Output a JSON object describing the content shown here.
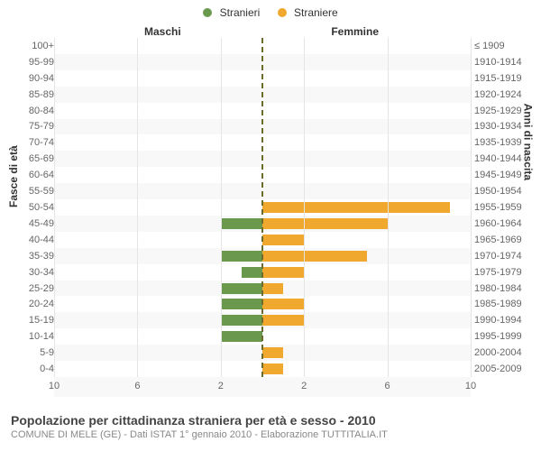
{
  "legend": {
    "items": [
      {
        "label": "Stranieri",
        "color": "#6a994e"
      },
      {
        "label": "Straniere",
        "color": "#f0a82e"
      }
    ]
  },
  "headers": {
    "left": "Maschi",
    "right": "Femmine"
  },
  "yaxis": {
    "left_title": "Fasce di età",
    "right_title": "Anni di nascita"
  },
  "footer": {
    "title": "Popolazione per cittadinanza straniera per età e sesso - 2010",
    "subtitle": "COMUNE DI MELE (GE) - Dati ISTAT 1° gennaio 2010 - Elaborazione TUTTITALIA.IT"
  },
  "chart": {
    "type": "population-pyramid",
    "background_color": "#f8f8f8",
    "alt_row_color": "#ffffff",
    "grid_color": "#e5e5e5",
    "centerline_color": "#6b6b2b",
    "male_color": "#6a994e",
    "female_color": "#f0a82e",
    "label_fontsize": 11,
    "x_max": 10,
    "x_ticks_left": [
      10,
      6,
      2
    ],
    "x_ticks_right": [
      2,
      6,
      10
    ],
    "rows": [
      {
        "age": "100+",
        "birth": "≤ 1909",
        "male": 0,
        "female": 0
      },
      {
        "age": "95-99",
        "birth": "1910-1914",
        "male": 0,
        "female": 0
      },
      {
        "age": "90-94",
        "birth": "1915-1919",
        "male": 0,
        "female": 0
      },
      {
        "age": "85-89",
        "birth": "1920-1924",
        "male": 0,
        "female": 0
      },
      {
        "age": "80-84",
        "birth": "1925-1929",
        "male": 0,
        "female": 0
      },
      {
        "age": "75-79",
        "birth": "1930-1934",
        "male": 0,
        "female": 0
      },
      {
        "age": "70-74",
        "birth": "1935-1939",
        "male": 0,
        "female": 0
      },
      {
        "age": "65-69",
        "birth": "1940-1944",
        "male": 0,
        "female": 0
      },
      {
        "age": "60-64",
        "birth": "1945-1949",
        "male": 0,
        "female": 0
      },
      {
        "age": "55-59",
        "birth": "1950-1954",
        "male": 0,
        "female": 0
      },
      {
        "age": "50-54",
        "birth": "1955-1959",
        "male": 0,
        "female": 9
      },
      {
        "age": "45-49",
        "birth": "1960-1964",
        "male": 2,
        "female": 6
      },
      {
        "age": "40-44",
        "birth": "1965-1969",
        "male": 0,
        "female": 2
      },
      {
        "age": "35-39",
        "birth": "1970-1974",
        "male": 2,
        "female": 5
      },
      {
        "age": "30-34",
        "birth": "1975-1979",
        "male": 1,
        "female": 2
      },
      {
        "age": "25-29",
        "birth": "1980-1984",
        "male": 2,
        "female": 1
      },
      {
        "age": "20-24",
        "birth": "1985-1989",
        "male": 2,
        "female": 2
      },
      {
        "age": "15-19",
        "birth": "1990-1994",
        "male": 2,
        "female": 2
      },
      {
        "age": "10-14",
        "birth": "1995-1999",
        "male": 2,
        "female": 0
      },
      {
        "age": "5-9",
        "birth": "2000-2004",
        "male": 0,
        "female": 1
      },
      {
        "age": "0-4",
        "birth": "2005-2009",
        "male": 0,
        "female": 1
      }
    ]
  }
}
